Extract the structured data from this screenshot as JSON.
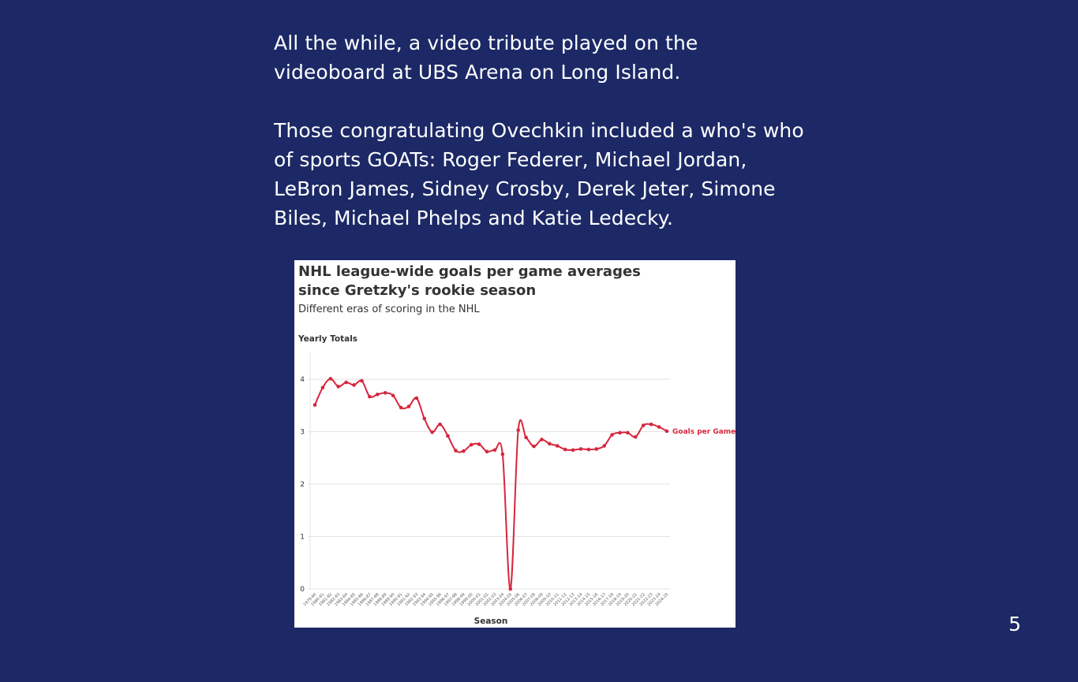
{
  "slide": {
    "paragraph_1": "All the while, a video tribute played on the videoboard at UBS Arena on Long Island.",
    "paragraph_2": "Those congratulating Ovechkin included a who's who of sports GOATs: Roger Federer, Michael Jordan, LeBron James, Sidney Crosby, Derek Jeter, Simone Biles, Michael Phelps and Katie Ledecky.",
    "page_number": "5"
  },
  "colors": {
    "background": "#1c2966",
    "text": "#ffffff",
    "series": "#d7263d"
  },
  "chart_data": {
    "type": "line",
    "title": "NHL league-wide goals per game averages since Gretzky's rookie season",
    "subtitle": "Different eras of scoring in the NHL",
    "ylabel": "Yearly Totals",
    "xlabel": "Season",
    "ylim": [
      0,
      4
    ],
    "yticks": [
      0,
      1,
      2,
      3,
      4
    ],
    "grid": true,
    "legend": "end-of-line label",
    "x": [
      "1979-80",
      "1980-81",
      "1981-82",
      "1982-83",
      "1983-84",
      "1984-85",
      "1985-86",
      "1986-87",
      "1987-88",
      "1988-89",
      "1989-90",
      "1990-91",
      "1991-92",
      "1992-93",
      "1993-94",
      "1994-95",
      "1995-96",
      "1996-97",
      "1997-98",
      "1998-99",
      "1999-00",
      "2000-01",
      "2001-02",
      "2002-03",
      "2003-04",
      "2004-05",
      "2005-06",
      "2006-07",
      "2007-08",
      "2008-09",
      "2009-10",
      "2010-11",
      "2011-12",
      "2012-13",
      "2013-14",
      "2014-15",
      "2015-16",
      "2016-17",
      "2017-18",
      "2018-19",
      "2019-20",
      "2020-21",
      "2021-22",
      "2022-23",
      "2023-24",
      "2024-25"
    ],
    "series": [
      {
        "name": "Goals per Game",
        "values": [
          3.51,
          3.84,
          4.01,
          3.86,
          3.94,
          3.89,
          3.97,
          3.67,
          3.71,
          3.74,
          3.69,
          3.46,
          3.48,
          3.64,
          3.25,
          2.99,
          3.14,
          2.92,
          2.64,
          2.63,
          2.75,
          2.76,
          2.62,
          2.65,
          2.57,
          0,
          3.03,
          2.89,
          2.72,
          2.85,
          2.77,
          2.73,
          2.66,
          2.65,
          2.67,
          2.66,
          2.67,
          2.73,
          2.94,
          2.98,
          2.98,
          2.9,
          3.12,
          3.14,
          3.09,
          3.01
        ]
      }
    ]
  }
}
